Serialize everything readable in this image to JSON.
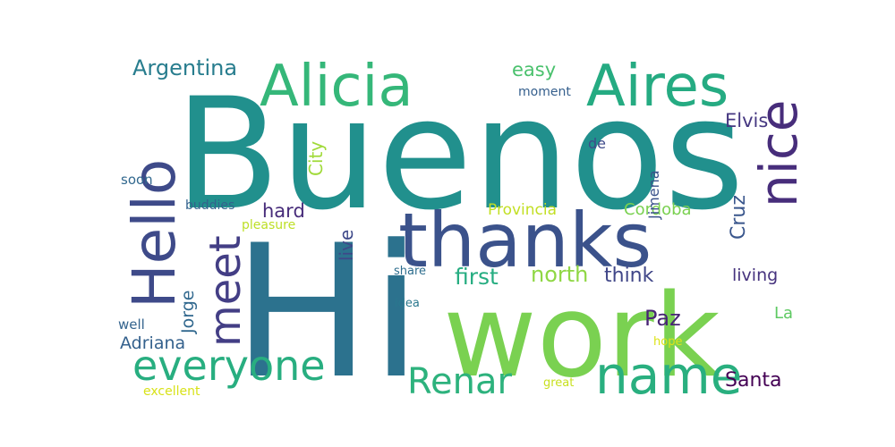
{
  "word_cloud": {
    "words": [
      {
        "text": "Buenos",
        "color": "#21908d"
      },
      {
        "text": "Hi",
        "color": "#2c728e"
      },
      {
        "text": "work",
        "color": "#7ad151"
      },
      {
        "text": "thanks",
        "color": "#3b528b"
      },
      {
        "text": "Alicia",
        "color": "#35b779"
      },
      {
        "text": "Aires",
        "color": "#25ab82"
      },
      {
        "text": "Hello",
        "color": "#3e4a89"
      },
      {
        "text": "name",
        "color": "#29af7f"
      },
      {
        "text": "nice",
        "color": "#472d7b"
      },
      {
        "text": "everyone",
        "color": "#28ae80"
      },
      {
        "text": "meet",
        "color": "#433e85"
      },
      {
        "text": "Renar",
        "color": "#2db27d"
      },
      {
        "text": "Argentina",
        "color": "#287d8e"
      },
      {
        "text": "Santa",
        "color": "#440154"
      },
      {
        "text": "first",
        "color": "#26ad81"
      },
      {
        "text": "north",
        "color": "#8fd744"
      },
      {
        "text": "think",
        "color": "#404688"
      },
      {
        "text": "Paz",
        "color": "#482475"
      },
      {
        "text": "Jorge",
        "color": "#31688e"
      },
      {
        "text": "Adriana",
        "color": "#34618d"
      },
      {
        "text": "Cruz",
        "color": "#39568c"
      },
      {
        "text": "easy",
        "color": "#4ac16d"
      },
      {
        "text": "Elvis",
        "color": "#453781"
      },
      {
        "text": "hard",
        "color": "#472c7a"
      },
      {
        "text": "City",
        "color": "#a0da39"
      },
      {
        "text": "live",
        "color": "#3e4989"
      },
      {
        "text": "Cordoba",
        "color": "#7ad151"
      },
      {
        "text": "Provincia",
        "color": "#c2df23"
      },
      {
        "text": "living",
        "color": "#46337e"
      },
      {
        "text": "La",
        "color": "#5ec962"
      },
      {
        "text": "Jimena",
        "color": "#3b528b"
      },
      {
        "text": "de",
        "color": "#3e4a89"
      },
      {
        "text": "moment",
        "color": "#355f8d"
      },
      {
        "text": "soon",
        "color": "#31688e"
      },
      {
        "text": "well",
        "color": "#33638d"
      },
      {
        "text": "buddies",
        "color": "#33628d"
      },
      {
        "text": "pleasure",
        "color": "#bddf26"
      },
      {
        "text": "share",
        "color": "#2e6e8e"
      },
      {
        "text": "idea",
        "color": "#2a788e"
      },
      {
        "text": "excellent",
        "color": "#d8e219"
      },
      {
        "text": "great",
        "color": "#c8e020"
      },
      {
        "text": "hope",
        "color": "#dde318"
      }
    ]
  }
}
